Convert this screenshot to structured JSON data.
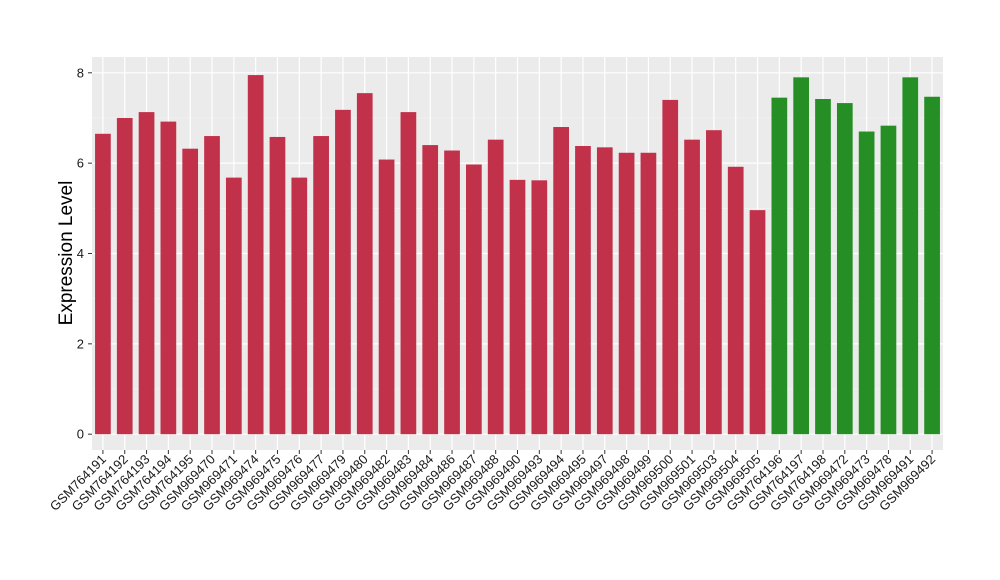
{
  "chart_data": {
    "type": "bar",
    "title": "",
    "xlabel": "",
    "ylabel": "Expression Level",
    "ylim": [
      -0.35,
      8.35
    ],
    "yticks": [
      0,
      2,
      4,
      6,
      8
    ],
    "grid": true,
    "panel_background": "#ebebeb",
    "categories": [
      "GSM764191",
      "GSM764192",
      "GSM764193",
      "GSM764194",
      "GSM764195",
      "GSM969470",
      "GSM969471",
      "GSM969474",
      "GSM969475",
      "GSM969476",
      "GSM969477",
      "GSM969479",
      "GSM969480",
      "GSM969482",
      "GSM969483",
      "GSM969484",
      "GSM969486",
      "GSM969487",
      "GSM969488",
      "GSM969490",
      "GSM969493",
      "GSM969494",
      "GSM969495",
      "GSM969497",
      "GSM969498",
      "GSM969499",
      "GSM969500",
      "GSM969501",
      "GSM969503",
      "GSM969504",
      "GSM969505",
      "GSM764196",
      "GSM764197",
      "GSM764198",
      "GSM969472",
      "GSM969473",
      "GSM969478",
      "GSM969491",
      "GSM969492"
    ],
    "values": [
      6.65,
      7.0,
      7.13,
      6.92,
      6.32,
      6.6,
      5.68,
      7.95,
      6.58,
      5.68,
      6.6,
      7.18,
      7.55,
      6.08,
      7.13,
      6.4,
      6.28,
      5.97,
      6.52,
      5.63,
      5.62,
      6.8,
      6.38,
      6.35,
      6.23,
      6.23,
      7.4,
      6.52,
      6.73,
      5.92,
      4.96,
      7.45,
      7.9,
      7.42,
      7.33,
      6.7,
      6.83,
      7.9,
      7.47
    ],
    "groups": [
      0,
      0,
      0,
      0,
      0,
      0,
      0,
      0,
      0,
      0,
      0,
      0,
      0,
      0,
      0,
      0,
      0,
      0,
      0,
      0,
      0,
      0,
      0,
      0,
      0,
      0,
      0,
      0,
      0,
      0,
      0,
      1,
      1,
      1,
      1,
      1,
      1,
      1,
      1
    ],
    "group_colors": [
      "#c1314a",
      "#258f26"
    ]
  }
}
